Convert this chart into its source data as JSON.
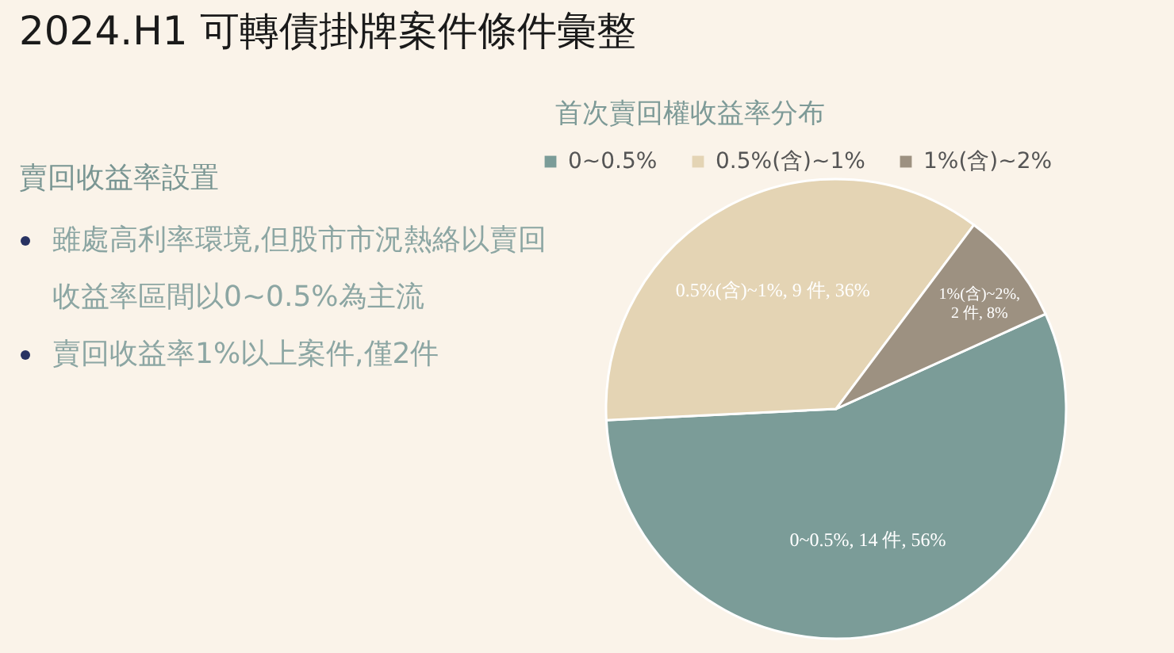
{
  "chart_data": {
    "type": "pie",
    "title": "2024.H1 可轉債掛牌案件條件彙整",
    "subtitle": "首次賣回權收益率分布",
    "categories": [
      "0~0.5%",
      "0.5%(含)~1%",
      "1%(含)~2%"
    ],
    "values": [
      14,
      9,
      2
    ],
    "colors": [
      "#7b9c98",
      "#e4d4b4",
      "#9d9181"
    ],
    "value_labels": [
      "0~0.5%, 14 件, 56%",
      "0.5%(含)~1%, 9 件, 36%",
      "1%(含)~2%, 2 件, 8%"
    ],
    "legend": "top",
    "annotations": [
      "賣回收益率設置",
      "雖處高利率環境,但股市市況熱絡以賣回收益率區間以0~0.5%為主流",
      "賣回收益率1%以上案件,僅2件"
    ]
  }
}
